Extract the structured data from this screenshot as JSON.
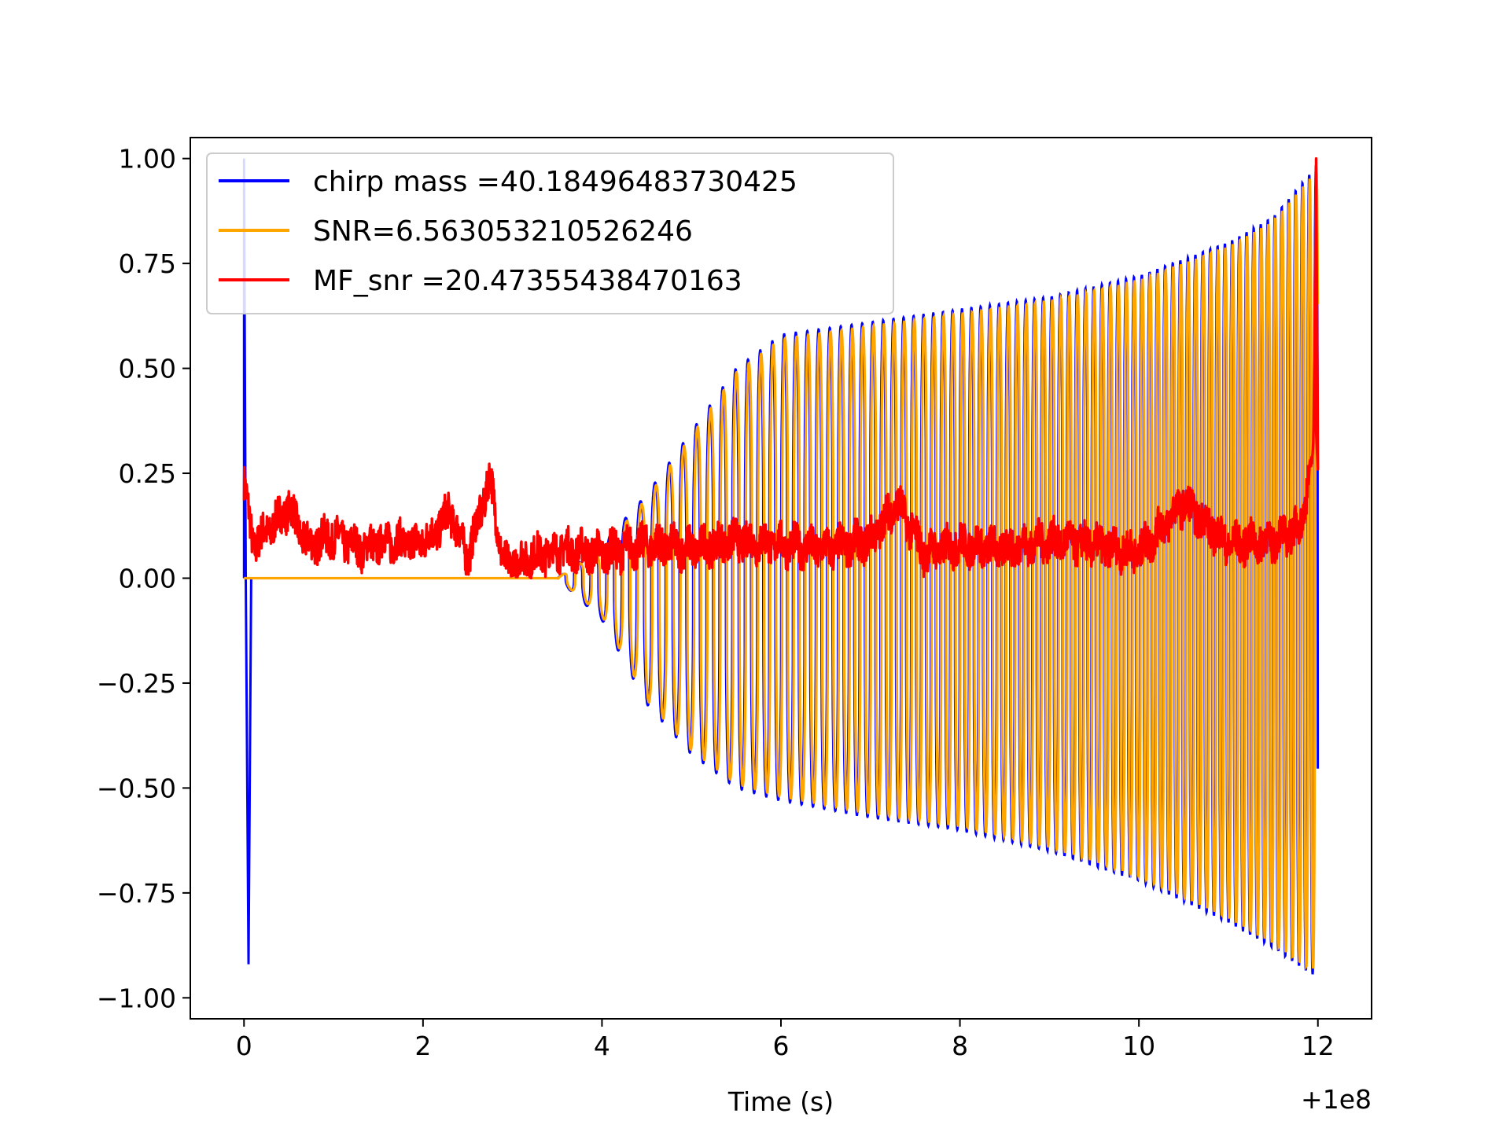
{
  "chart_data": {
    "type": "line",
    "title": "",
    "xlabel": "Time (s)",
    "ylabel": "",
    "x_offset_label": "+1e8",
    "xlim": [
      -0.6,
      12.6
    ],
    "ylim": [
      -1.05,
      1.05
    ],
    "x_ticks": [
      0,
      2,
      4,
      6,
      8,
      10,
      12
    ],
    "y_ticks": [
      -1.0,
      -0.75,
      -0.5,
      -0.25,
      0.0,
      0.25,
      0.5,
      0.75,
      1.0
    ],
    "x_tick_labels": [
      "0",
      "2",
      "4",
      "6",
      "8",
      "10",
      "12"
    ],
    "y_tick_labels": [
      "−1.00",
      "−0.75",
      "−0.50",
      "−0.25",
      "0.00",
      "0.25",
      "0.50",
      "0.75",
      "1.00"
    ],
    "grid": false,
    "legend_position": "top-left",
    "series": [
      {
        "name": "chirp mass =40.18496483730425",
        "color": "#0000ff",
        "description": "Whitened template chirp; spike near t=0, then oscillation growing from t≈3.5 to t≈12",
        "envelope": {
          "x": [
            3.5,
            4.0,
            4.5,
            5.0,
            5.5,
            6.0,
            7.0,
            8.0,
            9.0,
            10.0,
            11.0,
            11.5,
            11.9,
            12.0
          ],
          "upper": [
            0.0,
            0.08,
            0.2,
            0.35,
            0.5,
            0.58,
            0.61,
            0.64,
            0.67,
            0.72,
            0.8,
            0.86,
            0.96,
            0.99
          ],
          "lower": [
            0.0,
            -0.1,
            -0.3,
            -0.42,
            -0.5,
            -0.53,
            -0.57,
            -0.6,
            -0.65,
            -0.72,
            -0.82,
            -0.88,
            -0.94,
            -0.95
          ]
        },
        "spike": {
          "x": [
            0.0,
            0.02,
            0.05
          ],
          "y": [
            1.0,
            0.0,
            -0.92
          ]
        }
      },
      {
        "name": "SNR=6.563053210526246",
        "color": "#ffa500",
        "description": "Injected signal; zero until t≈3.5, then oscillation tracking the template envelope",
        "envelope": {
          "x": [
            3.5,
            4.0,
            4.5,
            5.0,
            5.5,
            6.0,
            7.0,
            8.0,
            9.0,
            10.0,
            11.0,
            11.5,
            11.9,
            12.0
          ],
          "upper": [
            0.0,
            0.07,
            0.19,
            0.34,
            0.49,
            0.57,
            0.6,
            0.63,
            0.66,
            0.71,
            0.79,
            0.85,
            0.95,
            0.97
          ],
          "lower": [
            0.0,
            -0.09,
            -0.29,
            -0.41,
            -0.49,
            -0.52,
            -0.56,
            -0.59,
            -0.64,
            -0.71,
            -0.81,
            -0.87,
            -0.93,
            -0.93
          ]
        }
      },
      {
        "name": "MF_snr =20.47355438470163",
        "color": "#ff0000",
        "description": "Matched-filter SNR time series (normalized); noisy 0–0.2 with a peak of 1.0 at t≈11.98",
        "points": {
          "x": [
            0.0,
            0.1,
            0.3,
            0.5,
            0.7,
            1.0,
            1.3,
            1.6,
            1.9,
            2.1,
            2.3,
            2.5,
            2.75,
            2.9,
            3.2,
            3.5,
            4.0,
            4.5,
            5.0,
            5.5,
            6.0,
            6.5,
            7.0,
            7.3,
            7.6,
            8.0,
            8.5,
            9.0,
            9.5,
            10.0,
            10.5,
            11.0,
            11.5,
            11.8,
            11.95,
            11.98,
            12.0
          ],
          "y": [
            0.23,
            0.08,
            0.12,
            0.17,
            0.08,
            0.1,
            0.07,
            0.09,
            0.08,
            0.1,
            0.16,
            0.05,
            0.24,
            0.03,
            0.05,
            0.07,
            0.06,
            0.08,
            0.07,
            0.09,
            0.08,
            0.07,
            0.09,
            0.18,
            0.06,
            0.08,
            0.07,
            0.09,
            0.08,
            0.06,
            0.18,
            0.08,
            0.09,
            0.12,
            0.3,
            1.0,
            0.27
          ]
        }
      }
    ]
  }
}
